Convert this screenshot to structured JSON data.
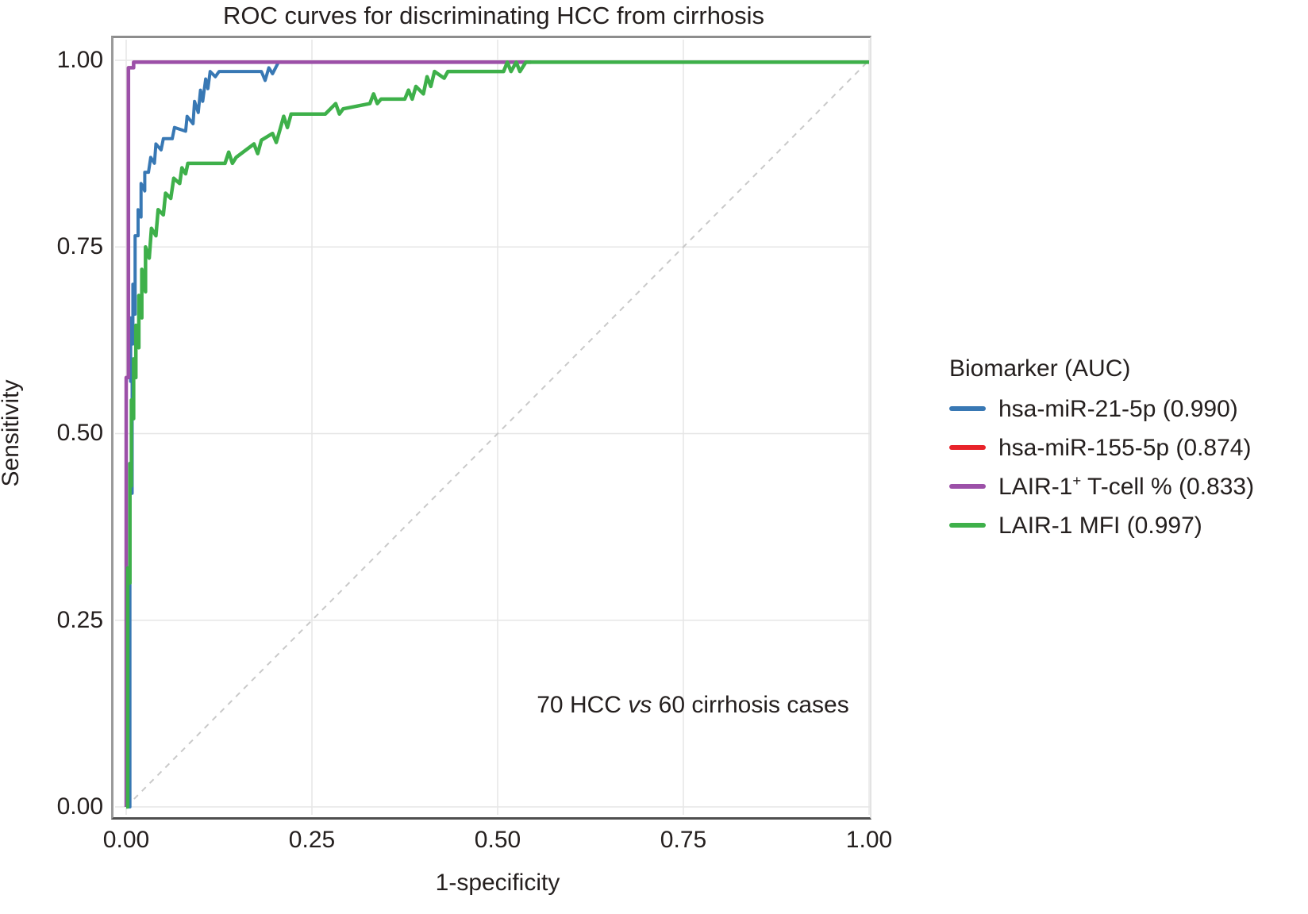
{
  "chart_data": {
    "type": "line",
    "title": "ROC curves for discriminating HCC from cirrhosis",
    "xlabel": "1-specificity",
    "ylabel": "Sensitivity",
    "xlim": [
      0,
      1
    ],
    "ylim": [
      0,
      1
    ],
    "grid": true,
    "x_ticks": [
      "0.00",
      "0.25",
      "0.50",
      "0.75",
      "1.00"
    ],
    "x_tick_values": [
      0,
      0.25,
      0.5,
      0.75,
      1.0
    ],
    "y_ticks": [
      "1.00",
      "0.75",
      "0.50",
      "0.25",
      "0.00"
    ],
    "y_tick_values": [
      1.0,
      0.75,
      0.5,
      0.25,
      0.0
    ],
    "legend_title": "Biomarker (AUC)",
    "legend_position": "right",
    "annotation": {
      "part1": "70 HCC ",
      "vs": "vs",
      "part2": " 60 cirrhosis cases"
    },
    "colors": {
      "grid": "#e6e6e6",
      "reference": "#c9c9c9",
      "text": "#241f1e"
    },
    "reference_line": {
      "points": [
        [
          0,
          0
        ],
        [
          1,
          1
        ]
      ],
      "style": "dashed",
      "color": "#c9c9c9"
    },
    "draw_order": [
      1,
      0,
      2,
      3
    ],
    "series": [
      {
        "name": "hsa-miR-21-5p",
        "auc": 0.99,
        "color": "#3878B4",
        "width": 4,
        "legend": {
          "prefix": "hsa-miR-21-5p (0.990)"
        },
        "points": [
          [
            0,
            0
          ],
          [
            0.005,
            0
          ],
          [
            0.005,
            0.45
          ],
          [
            0.008,
            0.42
          ],
          [
            0.008,
            0.6
          ],
          [
            0.006,
            0.57
          ],
          [
            0.006,
            0.655
          ],
          [
            0.009,
            0.62
          ],
          [
            0.009,
            0.7
          ],
          [
            0.012,
            0.66
          ],
          [
            0.012,
            0.765
          ],
          [
            0.016,
            0.765
          ],
          [
            0.016,
            0.8
          ],
          [
            0.02,
            0.79
          ],
          [
            0.02,
            0.835
          ],
          [
            0.025,
            0.825
          ],
          [
            0.025,
            0.85
          ],
          [
            0.03,
            0.85
          ],
          [
            0.033,
            0.87
          ],
          [
            0.038,
            0.862
          ],
          [
            0.04,
            0.888
          ],
          [
            0.047,
            0.88
          ],
          [
            0.05,
            0.895
          ],
          [
            0.062,
            0.895
          ],
          [
            0.065,
            0.91
          ],
          [
            0.08,
            0.905
          ],
          [
            0.082,
            0.925
          ],
          [
            0.09,
            0.915
          ],
          [
            0.092,
            0.945
          ],
          [
            0.097,
            0.93
          ],
          [
            0.1,
            0.96
          ],
          [
            0.103,
            0.945
          ],
          [
            0.107,
            0.975
          ],
          [
            0.11,
            0.962
          ],
          [
            0.113,
            0.985
          ],
          [
            0.12,
            0.978
          ],
          [
            0.125,
            0.985
          ],
          [
            0.182,
            0.985
          ],
          [
            0.187,
            0.973
          ],
          [
            0.192,
            0.99
          ],
          [
            0.197,
            0.982
          ],
          [
            0.205,
            0.9975
          ],
          [
            0.21,
            0.9975
          ]
        ]
      },
      {
        "name": "hsa-miR-155-5p",
        "auc": 0.874,
        "color": "#E8232A",
        "width": 4,
        "legend": {
          "prefix": "hsa-miR-155-5p (0.874)"
        },
        "points": [
          [
            0,
            0
          ],
          [
            0,
            0.575
          ],
          [
            0.003,
            0.575
          ],
          [
            0.003,
            0.99
          ],
          [
            0.01,
            0.99
          ],
          [
            0.01,
            0.9975
          ],
          [
            0.545,
            0.9975
          ]
        ]
      },
      {
        "name": "LAIR-1+ T-cell %",
        "auc": 0.833,
        "color": "#9C50A8",
        "width": 4.5,
        "legend": {
          "prefix": "LAIR-1",
          "sup": "+",
          "suffix": " T-cell % (0.833)"
        },
        "points": [
          [
            0,
            0
          ],
          [
            0,
            0.575
          ],
          [
            0.003,
            0.575
          ],
          [
            0.003,
            0.99
          ],
          [
            0.01,
            0.99
          ],
          [
            0.01,
            0.9975
          ],
          [
            0.545,
            0.9975
          ]
        ]
      },
      {
        "name": "LAIR-1 MFI",
        "auc": 0.997,
        "color": "#3EB04A",
        "width": 4.5,
        "legend": {
          "prefix": "LAIR-1 MFI (0.997)"
        },
        "points": [
          [
            0,
            0
          ],
          [
            0.002,
            0
          ],
          [
            0.002,
            0.32
          ],
          [
            0.005,
            0.3
          ],
          [
            0.005,
            0.46
          ],
          [
            0.007,
            0.43
          ],
          [
            0.007,
            0.545
          ],
          [
            0.01,
            0.52
          ],
          [
            0.01,
            0.6
          ],
          [
            0.013,
            0.575
          ],
          [
            0.013,
            0.645
          ],
          [
            0.017,
            0.615
          ],
          [
            0.017,
            0.685
          ],
          [
            0.021,
            0.655
          ],
          [
            0.021,
            0.72
          ],
          [
            0.026,
            0.69
          ],
          [
            0.026,
            0.75
          ],
          [
            0.031,
            0.735
          ],
          [
            0.034,
            0.775
          ],
          [
            0.04,
            0.765
          ],
          [
            0.043,
            0.8
          ],
          [
            0.05,
            0.793
          ],
          [
            0.053,
            0.822
          ],
          [
            0.06,
            0.815
          ],
          [
            0.064,
            0.842
          ],
          [
            0.072,
            0.835
          ],
          [
            0.075,
            0.856
          ],
          [
            0.08,
            0.848
          ],
          [
            0.083,
            0.862
          ],
          [
            0.133,
            0.862
          ],
          [
            0.138,
            0.877
          ],
          [
            0.143,
            0.862
          ],
          [
            0.148,
            0.87
          ],
          [
            0.172,
            0.888
          ],
          [
            0.177,
            0.875
          ],
          [
            0.182,
            0.893
          ],
          [
            0.197,
            0.902
          ],
          [
            0.202,
            0.89
          ],
          [
            0.207,
            0.907
          ],
          [
            0.212,
            0.925
          ],
          [
            0.217,
            0.91
          ],
          [
            0.222,
            0.928
          ],
          [
            0.268,
            0.928
          ],
          [
            0.282,
            0.942
          ],
          [
            0.287,
            0.928
          ],
          [
            0.292,
            0.935
          ],
          [
            0.328,
            0.942
          ],
          [
            0.333,
            0.955
          ],
          [
            0.338,
            0.942
          ],
          [
            0.343,
            0.948
          ],
          [
            0.375,
            0.948
          ],
          [
            0.38,
            0.96
          ],
          [
            0.385,
            0.948
          ],
          [
            0.39,
            0.965
          ],
          [
            0.4,
            0.955
          ],
          [
            0.405,
            0.978
          ],
          [
            0.41,
            0.965
          ],
          [
            0.415,
            0.985
          ],
          [
            0.428,
            0.976
          ],
          [
            0.433,
            0.985
          ],
          [
            0.508,
            0.985
          ],
          [
            0.513,
            0.9975
          ],
          [
            0.518,
            0.985
          ],
          [
            0.525,
            0.9975
          ],
          [
            0.53,
            0.985
          ],
          [
            0.538,
            0.9975
          ],
          [
            1.0,
            0.9975
          ]
        ]
      }
    ]
  }
}
